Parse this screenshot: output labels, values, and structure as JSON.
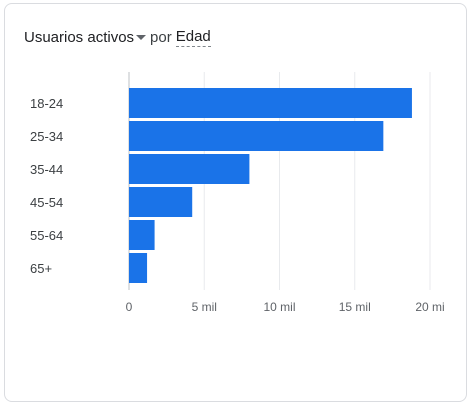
{
  "header": {
    "metric_label": "Usuarios activos",
    "metric_dropdown_icon": "caret-down-icon",
    "connector": "por",
    "dimension_label": "Edad"
  },
  "colors": {
    "bar": "#1a73e8",
    "grid": "#e8eaed",
    "axis": "#bdc1c6"
  },
  "chart_data": {
    "type": "bar",
    "orientation": "horizontal",
    "categories": [
      "18-24",
      "25-34",
      "35-44",
      "45-54",
      "55-64",
      "65+"
    ],
    "values": [
      18800,
      16900,
      8000,
      4200,
      1700,
      1200
    ],
    "xlim": [
      0,
      20000
    ],
    "xticks": [
      0,
      5000,
      10000,
      15000,
      20000
    ],
    "xtick_labels": [
      "0",
      "5 mil",
      "10 mil",
      "15 mil",
      "20 mi"
    ],
    "grid": true,
    "title": "",
    "xlabel": "",
    "ylabel": ""
  }
}
